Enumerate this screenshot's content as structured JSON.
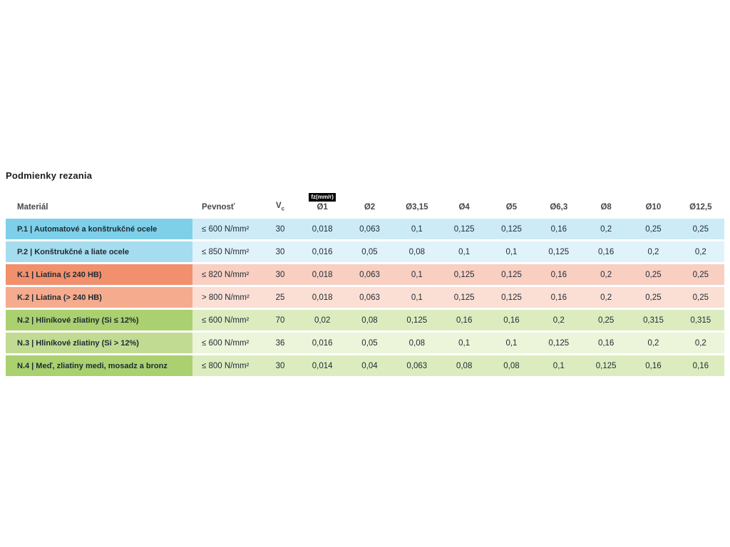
{
  "title": "Podmienky rezania",
  "table": {
    "badge": "fz(mm/r)",
    "vc_base": "V",
    "vc_sub": "c",
    "columns": [
      "Materiál",
      "Pevnosť",
      "Vc",
      "Ø1",
      "Ø2",
      "Ø3,15",
      "Ø4",
      "Ø5",
      "Ø6,3",
      "Ø8",
      "Ø10",
      "Ø12,5"
    ],
    "rows": [
      {
        "palette": "blue_dark",
        "material": "P.1 | Automatové a konštrukčné ocele",
        "strength": "≤ 600 N/mm²",
        "vc": "30",
        "values": [
          "0,018",
          "0,063",
          "0,1",
          "0,125",
          "0,125",
          "0,16",
          "0,2",
          "0,25",
          "0,25"
        ]
      },
      {
        "palette": "blue_light",
        "material": "P.2 | Konštrukčné a liate ocele",
        "strength": "≤ 850 N/mm²",
        "vc": "30",
        "values": [
          "0,016",
          "0,05",
          "0,08",
          "0,1",
          "0,1",
          "0,125",
          "0,16",
          "0,2",
          "0,2"
        ]
      },
      {
        "palette": "coral_dark",
        "material": "K.1 | Liatina (≤ 240 HB)",
        "strength": "≤ 820 N/mm²",
        "vc": "30",
        "values": [
          "0,018",
          "0,063",
          "0,1",
          "0,125",
          "0,125",
          "0,16",
          "0,2",
          "0,25",
          "0,25"
        ]
      },
      {
        "palette": "coral_light",
        "material": "K.2 | Liatina (> 240 HB)",
        "strength": "> 800 N/mm²",
        "vc": "25",
        "values": [
          "0,018",
          "0,063",
          "0,1",
          "0,125",
          "0,125",
          "0,16",
          "0,2",
          "0,25",
          "0,25"
        ]
      },
      {
        "palette": "green_dark",
        "material": "N.2 | Hliníkové zliatiny (Si ≤ 12%)",
        "strength": "≤ 600 N/mm²",
        "vc": "70",
        "values": [
          "0,02",
          "0,08",
          "0,125",
          "0,16",
          "0,16",
          "0,2",
          "0,25",
          "0,315",
          "0,315"
        ]
      },
      {
        "palette": "green_light",
        "material": "N.3 | Hliníkové zliatiny (Si > 12%)",
        "strength": "≤ 600 N/mm²",
        "vc": "36",
        "values": [
          "0,016",
          "0,05",
          "0,08",
          "0,1",
          "0,1",
          "0,125",
          "0,16",
          "0,2",
          "0,2"
        ]
      },
      {
        "palette": "green_dark",
        "material": "N.4 | Meď, zliatiny medi, mosadz a bronz",
        "strength": "≤ 800 N/mm²",
        "vc": "30",
        "values": [
          "0,014",
          "0,04",
          "0,063",
          "0,08",
          "0,08",
          "0,1",
          "0,125",
          "0,16",
          "0,16"
        ]
      }
    ]
  },
  "colors": {
    "blue_dark": {
      "label": "#7ed0e9",
      "cell": "#cdebf6"
    },
    "blue_light": {
      "label": "#a6dcef",
      "cell": "#e1f3fa"
    },
    "coral_dark": {
      "label": "#f2906d",
      "cell": "#f9cfc2"
    },
    "coral_light": {
      "label": "#f5ab8e",
      "cell": "#fbdfd4"
    },
    "green_dark": {
      "label": "#abd06f",
      "cell": "#dcecbf"
    },
    "green_light": {
      "label": "#c2db93",
      "cell": "#ecf4d9"
    }
  }
}
